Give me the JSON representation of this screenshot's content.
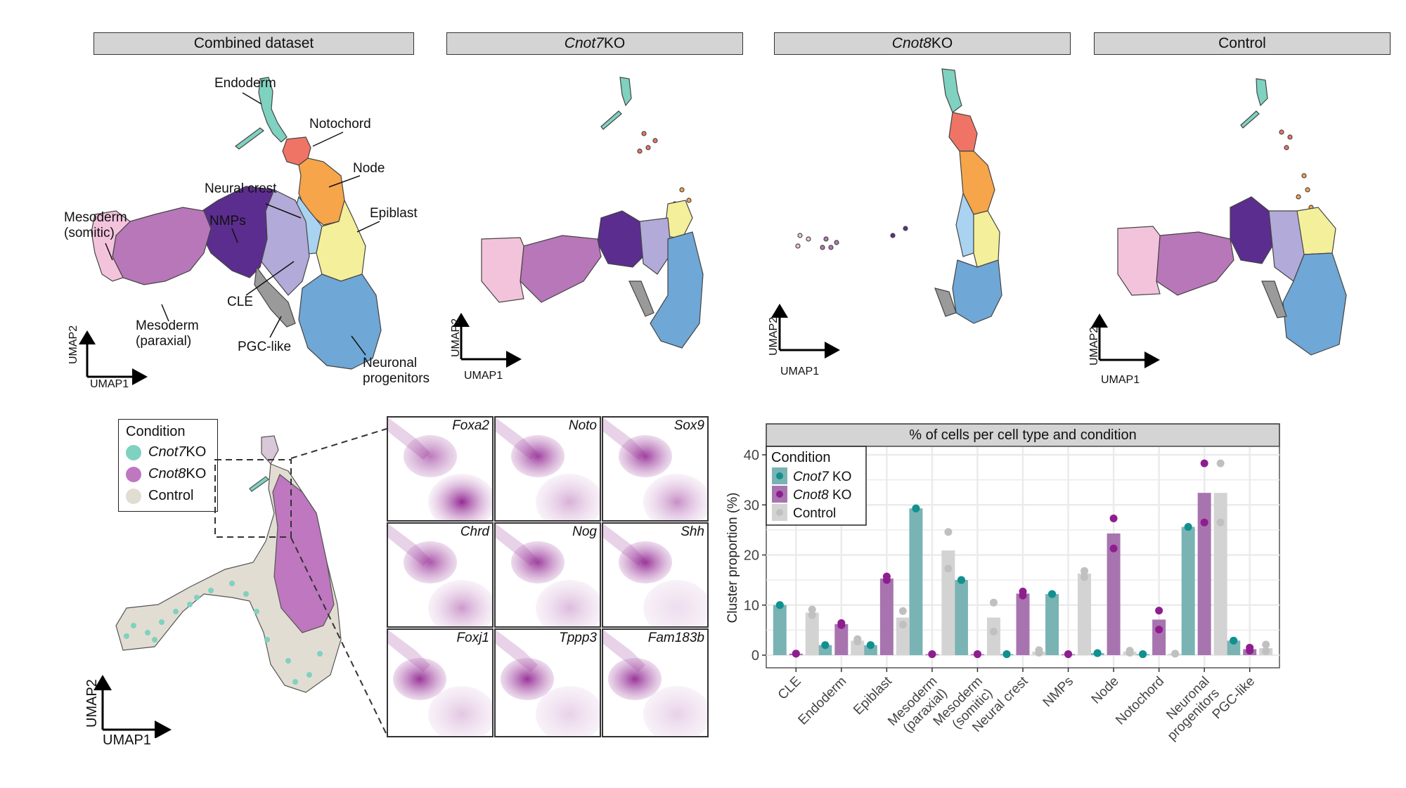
{
  "top_panels": [
    {
      "title_italic": "",
      "title_rest": "Combined dataset"
    },
    {
      "title_italic": "Cnot7",
      "title_rest": " KO"
    },
    {
      "title_italic": "Cnot8",
      "title_rest": " KO"
    },
    {
      "title_italic": "",
      "title_rest": "Control"
    }
  ],
  "umap_axes": {
    "x": "UMAP1",
    "y": "UMAP2"
  },
  "cluster_labels": [
    {
      "text": "Endoderm",
      "color": "#7fd1c0"
    },
    {
      "text": "Notochord",
      "color": "#f07465"
    },
    {
      "text": "Node",
      "color": "#f6a54b"
    },
    {
      "text": "Neural crest",
      "color": "#a9d3f0"
    },
    {
      "text": "Epiblast",
      "color": "#f4ef9a"
    },
    {
      "text": "Mesoderm\n(somitic)",
      "color": "#f3c3dc"
    },
    {
      "text": "NMPs",
      "color": "#5b2d8e"
    },
    {
      "text": "CLE",
      "color": "#b2aad8"
    },
    {
      "text": "Mesoderm\n(paraxial)",
      "color": "#b877b8"
    },
    {
      "text": "PGC-like",
      "color": "#9a9a9a"
    },
    {
      "text": "Neuronal\nprogenitors",
      "color": "#6fa7d6"
    }
  ],
  "condition_legend": {
    "title": "Condition",
    "items": [
      {
        "italic": "Cnot7",
        "rest": " KO",
        "color": "#7fd1c0"
      },
      {
        "italic": "Cnot8",
        "rest": " KO",
        "color": "#bf77c0"
      },
      {
        "italic": "",
        "rest": "Control",
        "color": "#e2ddd2"
      }
    ]
  },
  "gene_panels": [
    "Foxa2",
    "Noto",
    "Sox9",
    "Chrd",
    "Nog",
    "Shh",
    "Foxj1",
    "Tppp3",
    "Fam183b"
  ],
  "chart_data": {
    "type": "bar",
    "title": "% of cells per cell type and condition",
    "xlabel": "",
    "ylabel": "Cluster proportion (%)",
    "ylim": [
      0,
      40
    ],
    "yticks": [
      0,
      10,
      20,
      30,
      40
    ],
    "grid": true,
    "legend": {
      "title": "Condition",
      "placement": "top-left"
    },
    "categories": [
      "CLE",
      "Endoderm",
      "Epiblast",
      "Mesoderm\n(paraxial)",
      "Mesoderm\n(somitic)",
      "Neural crest",
      "NMPs",
      "Node",
      "Notochord",
      "Neuronal\nprogenitors",
      "PGC-like"
    ],
    "series": [
      {
        "name": "Cnot7 KO",
        "name_italic": "Cnot7",
        "name_rest": " KO",
        "bar_color": "#7ab3b3",
        "point_color": "#119090",
        "values": [
          10.0,
          2.0,
          2.0,
          29.3,
          15.0,
          0.2,
          12.2,
          0.4,
          0.2,
          25.6,
          2.9
        ],
        "replicates": [
          [
            10.0,
            10.0
          ],
          [
            2.0,
            2.0
          ],
          [
            2.0,
            2.0
          ],
          [
            29.3,
            29.3
          ],
          [
            15.0,
            15.0
          ],
          [
            0.2,
            0.2
          ],
          [
            12.2,
            12.2
          ],
          [
            0.4,
            0.4
          ],
          [
            0.2,
            0.2
          ],
          [
            25.6,
            25.6
          ],
          [
            2.9,
            2.9
          ]
        ]
      },
      {
        "name": "Cnot8 KO",
        "name_italic": "Cnot8",
        "name_rest": " KO",
        "bar_color": "#a874b0",
        "point_color": "#8e1e8e",
        "values": [
          0.3,
          6.2,
          15.3,
          0.2,
          0.2,
          12.3,
          0.2,
          24.3,
          7.1,
          32.4,
          1.2
        ],
        "replicates": [
          [
            0.3,
            0.3
          ],
          [
            6.0,
            6.4
          ],
          [
            15.0,
            15.7
          ],
          [
            0.2,
            0.2
          ],
          [
            0.2,
            0.2
          ],
          [
            11.9,
            12.7
          ],
          [
            0.2,
            0.2
          ],
          [
            21.3,
            27.3
          ],
          [
            5.1,
            8.9
          ],
          [
            26.5,
            38.3
          ],
          [
            0.9,
            1.5
          ]
        ]
      },
      {
        "name": "Control",
        "name_italic": "",
        "name_rest": "Control",
        "bar_color": "#d3d3d3",
        "point_color": "#c0c0c0",
        "values": [
          8.5,
          2.9,
          7.5,
          20.9,
          7.5,
          0.7,
          16.3,
          0.7,
          0.3,
          32.4,
          1.4
        ],
        "replicates": [
          [
            8.0,
            9.1
          ],
          [
            2.7,
            3.2
          ],
          [
            6.1,
            8.8
          ],
          [
            17.3,
            24.6
          ],
          [
            4.7,
            10.5
          ],
          [
            0.5,
            1.0
          ],
          [
            15.6,
            16.8
          ],
          [
            0.5,
            0.9
          ],
          [
            0.3,
            0.3
          ],
          [
            26.5,
            38.3
          ],
          [
            0.8,
            2.1
          ]
        ]
      }
    ]
  }
}
